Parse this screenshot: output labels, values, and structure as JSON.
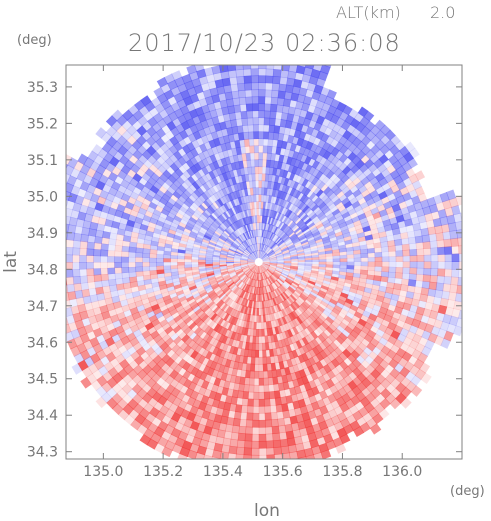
{
  "header": {
    "altitude_label": "ALT(km)",
    "altitude_value": "2.0",
    "title": "2017/10/23 02:36:08",
    "y_unit": "(deg)",
    "x_unit": "(deg)"
  },
  "chart_data": {
    "type": "heatmap",
    "xlabel": "lon",
    "ylabel": "lat",
    "xlim": [
      134.875,
      136.2
    ],
    "ylim": [
      34.28,
      35.36
    ],
    "x_ticks": [
      "135.0",
      "135.2",
      "135.4",
      "135.6",
      "135.8",
      "136.0"
    ],
    "y_ticks": [
      "34.3",
      "34.4",
      "34.5",
      "34.6",
      "34.7",
      "34.8",
      "34.9",
      "35.0",
      "35.1",
      "35.2",
      "35.3"
    ],
    "grid": false,
    "radar_center": {
      "lon": 135.52,
      "lat": 34.82
    },
    "colors": {
      "positive": "#f03c3c",
      "negative": "#5050f0",
      "neutral": "#f4f4fb",
      "axis": "#808080"
    }
  }
}
